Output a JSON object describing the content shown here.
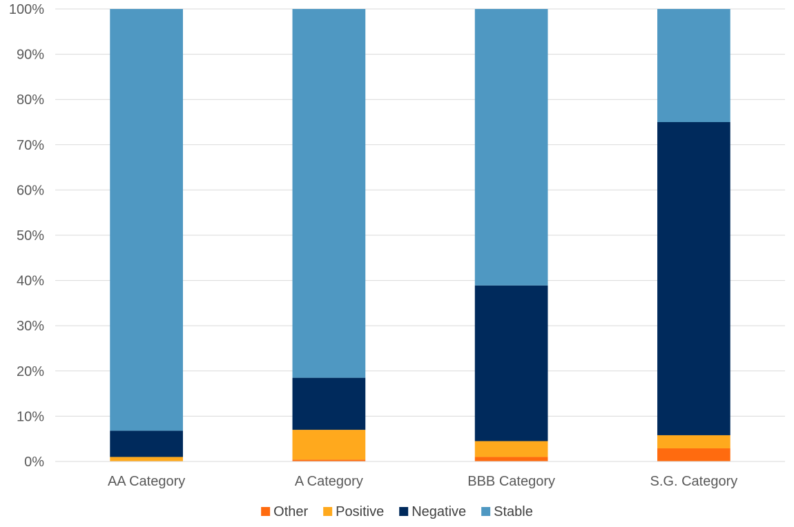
{
  "chart_data": {
    "type": "bar",
    "stacked": true,
    "percent": true,
    "categories": [
      "AA Category",
      "A Category",
      "BBB Category",
      "S.G. Category"
    ],
    "series": [
      {
        "name": "Other",
        "color": "#FF6B0F",
        "values": [
          0.0,
          0.4,
          1.0,
          2.9
        ]
      },
      {
        "name": "Positive",
        "color": "#FFA91D",
        "values": [
          1.0,
          6.6,
          3.5,
          2.9
        ]
      },
      {
        "name": "Negative",
        "color": "#002A5C",
        "values": [
          5.8,
          11.5,
          34.4,
          69.2
        ]
      },
      {
        "name": "Stable",
        "color": "#4F98C2",
        "values": [
          93.2,
          81.5,
          61.1,
          25.0
        ]
      }
    ],
    "ylim": [
      0,
      100
    ],
    "yticks": [
      "0%",
      "10%",
      "20%",
      "30%",
      "40%",
      "50%",
      "60%",
      "70%",
      "80%",
      "90%",
      "100%"
    ],
    "grid": true,
    "legend_position": "bottom"
  }
}
